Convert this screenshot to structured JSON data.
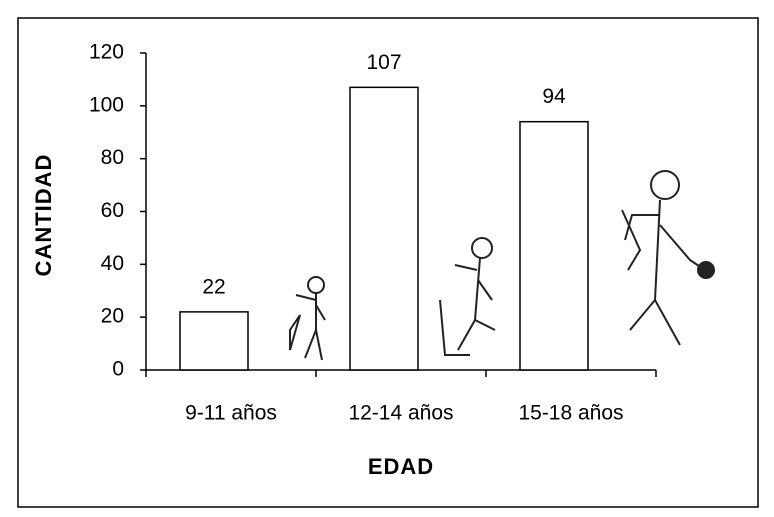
{
  "chart_data": {
    "type": "bar",
    "categories": [
      "9-11 años",
      "12-14 años",
      "15-18 años"
    ],
    "values": [
      22,
      107,
      94
    ],
    "color": "#ffffff",
    "y_label": "CANTIDAD",
    "x_label": "EDAD",
    "ylim": [
      0,
      120
    ],
    "yticks": [
      0,
      20,
      40,
      60,
      80,
      100,
      120
    ],
    "grid": false
  }
}
